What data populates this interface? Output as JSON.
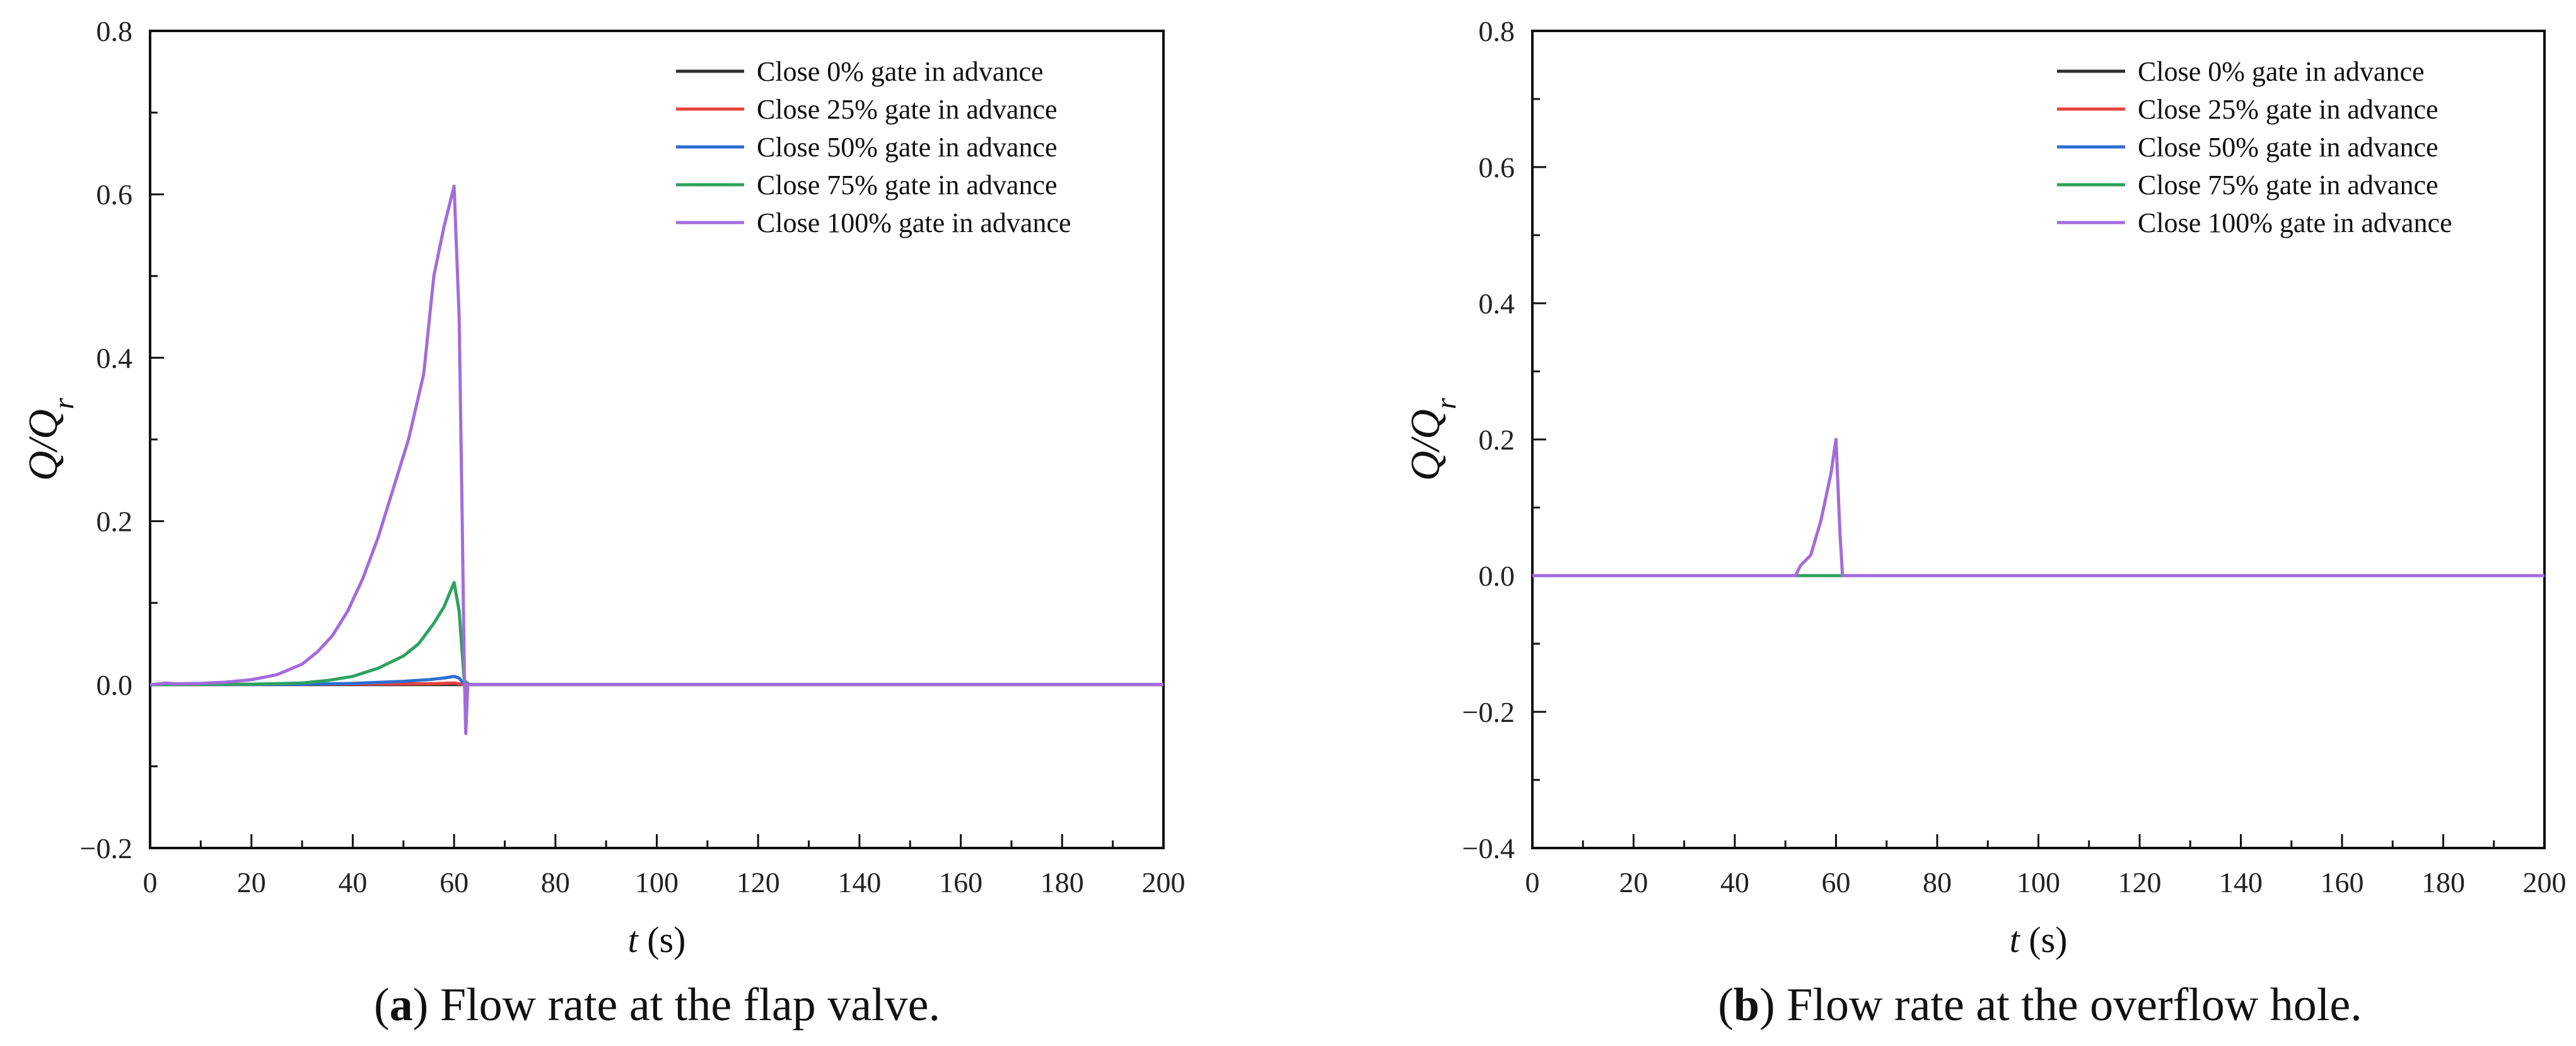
{
  "chart_data": [
    {
      "type": "line",
      "id": "a",
      "caption_letter": "a",
      "caption_text": " Flow rate at the flap valve.",
      "xlabel_var": "t",
      "xlabel_unit": " (s)",
      "ylabel": "Q/Q",
      "ylabel_sub": "r",
      "xlim": [
        0,
        200
      ],
      "ylim": [
        -0.2,
        0.8
      ],
      "xticks": [
        0,
        20,
        40,
        60,
        80,
        100,
        120,
        140,
        160,
        180,
        200
      ],
      "yticks": [
        -0.2,
        0.0,
        0.2,
        0.4,
        0.6,
        0.8
      ],
      "ytick_labels": [
        "−0.2",
        "0.0",
        "0.2",
        "0.4",
        "0.6",
        "0.8"
      ],
      "legend_position": "top-right",
      "series": [
        {
          "name": "Close 0% gate in advance",
          "color": "#2f2f2f",
          "points": [
            [
              0,
              0
            ],
            [
              200,
              0
            ]
          ]
        },
        {
          "name": "Close 25% gate in advance",
          "color": "#e8423a",
          "points": [
            [
              0,
              0
            ],
            [
              55,
              0.001
            ],
            [
              60,
              0.002
            ],
            [
              62,
              0
            ],
            [
              200,
              0
            ]
          ]
        },
        {
          "name": "Close 50% gate in advance",
          "color": "#2d6fd2",
          "points": [
            [
              0,
              0
            ],
            [
              30,
              0.0005
            ],
            [
              40,
              0.0015
            ],
            [
              50,
              0.004
            ],
            [
              55,
              0.006
            ],
            [
              58,
              0.008
            ],
            [
              60,
              0.01
            ],
            [
              61,
              0.008
            ],
            [
              62,
              0
            ],
            [
              200,
              0
            ]
          ]
        },
        {
          "name": "Close 75% gate in advance",
          "color": "#2fa15f",
          "points": [
            [
              0,
              0
            ],
            [
              20,
              0.0005
            ],
            [
              30,
              0.002
            ],
            [
              35,
              0.005
            ],
            [
              40,
              0.01
            ],
            [
              45,
              0.02
            ],
            [
              50,
              0.035
            ],
            [
              53,
              0.05
            ],
            [
              56,
              0.075
            ],
            [
              58,
              0.095
            ],
            [
              60,
              0.125
            ],
            [
              61,
              0.09
            ],
            [
              62,
              0.005
            ],
            [
              63,
              0
            ],
            [
              200,
              0
            ]
          ]
        },
        {
          "name": "Close 100% gate in advance",
          "color": "#a36bdc",
          "points": [
            [
              0,
              0
            ],
            [
              2,
              0.001
            ],
            [
              3,
              0.002
            ],
            [
              5,
              0.001
            ],
            [
              10,
              0.0015
            ],
            [
              15,
              0.003
            ],
            [
              20,
              0.006
            ],
            [
              25,
              0.012
            ],
            [
              30,
              0.025
            ],
            [
              33,
              0.04
            ],
            [
              36,
              0.06
            ],
            [
              39,
              0.09
            ],
            [
              42,
              0.13
            ],
            [
              45,
              0.18
            ],
            [
              48,
              0.24
            ],
            [
              51,
              0.3
            ],
            [
              54,
              0.38
            ],
            [
              56,
              0.5
            ],
            [
              58,
              0.56
            ],
            [
              60,
              0.61
            ],
            [
              61,
              0.45
            ],
            [
              61.6,
              0.2
            ],
            [
              62,
              0.02
            ],
            [
              62.3,
              -0.06
            ],
            [
              62.7,
              0
            ],
            [
              200,
              0
            ]
          ]
        }
      ]
    },
    {
      "type": "line",
      "id": "b",
      "caption_letter": "b",
      "caption_text": " Flow rate at the overflow hole.",
      "xlabel_var": "t",
      "xlabel_unit": " (s)",
      "ylabel": "Q/Q",
      "ylabel_sub": "r",
      "xlim": [
        0,
        200
      ],
      "ylim": [
        -0.4,
        0.8
      ],
      "xticks": [
        0,
        20,
        40,
        60,
        80,
        100,
        120,
        140,
        160,
        180,
        200
      ],
      "yticks": [
        -0.4,
        -0.2,
        0.0,
        0.2,
        0.4,
        0.6,
        0.8
      ],
      "ytick_labels": [
        "−0.4",
        "−0.2",
        "0.0",
        "0.2",
        "0.4",
        "0.6",
        "0.8"
      ],
      "legend_position": "top-right",
      "series": [
        {
          "name": "Close 0% gate in advance",
          "color": "#2f2f2f",
          "points": [
            [
              0,
              0
            ],
            [
              200,
              0
            ]
          ]
        },
        {
          "name": "Close 25% gate in advance",
          "color": "#e8423a",
          "points": [
            [
              0,
              0
            ],
            [
              200,
              0
            ]
          ]
        },
        {
          "name": "Close 50% gate in advance",
          "color": "#2d6fd2",
          "points": [
            [
              0,
              0
            ],
            [
              200,
              0
            ]
          ]
        },
        {
          "name": "Close 75% gate in advance",
          "color": "#2fa15f",
          "points": [
            [
              0,
              0
            ],
            [
              200,
              0
            ]
          ]
        },
        {
          "name": "Close 100% gate in advance",
          "color": "#a36bdc",
          "points": [
            [
              0,
              0
            ],
            [
              52,
              0
            ],
            [
              53,
              0.015
            ],
            [
              55,
              0.03
            ],
            [
              57,
              0.08
            ],
            [
              59,
              0.15
            ],
            [
              60,
              0.2
            ],
            [
              60.8,
              0.06
            ],
            [
              61.3,
              0
            ],
            [
              200,
              0
            ]
          ]
        }
      ]
    }
  ]
}
